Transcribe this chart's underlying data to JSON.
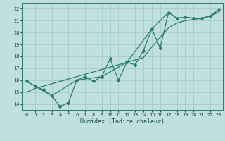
{
  "xlabel": "Humidex (Indice chaleur)",
  "xlim": [
    -0.5,
    23.5
  ],
  "ylim": [
    13.5,
    22.5
  ],
  "yticks": [
    14,
    15,
    16,
    17,
    18,
    19,
    20,
    21,
    22
  ],
  "xticks": [
    0,
    1,
    2,
    3,
    4,
    5,
    6,
    7,
    8,
    9,
    10,
    11,
    12,
    13,
    14,
    15,
    16,
    17,
    18,
    19,
    20,
    21,
    22,
    23
  ],
  "bg_color": "#c0e0e0",
  "line_color": "#2a7a6a",
  "grid_color_major": "#a0c8c8",
  "line1_x": [
    0,
    1,
    2,
    3,
    4,
    5,
    6,
    7,
    8,
    9,
    10,
    11,
    12,
    13,
    14,
    15,
    16,
    17,
    18,
    19,
    20,
    21,
    22,
    23
  ],
  "line1_y": [
    15.9,
    15.5,
    15.2,
    14.7,
    13.8,
    14.1,
    16.0,
    16.3,
    15.9,
    16.3,
    17.8,
    16.0,
    17.5,
    17.3,
    18.5,
    20.3,
    18.7,
    21.7,
    21.2,
    21.3,
    21.2,
    21.2,
    21.4,
    21.9
  ],
  "line2_x": [
    0,
    1,
    2,
    3,
    4,
    5,
    6,
    7,
    8,
    9,
    10,
    11,
    12,
    13,
    14,
    15,
    16,
    17,
    18,
    19,
    20,
    21,
    22,
    23
  ],
  "line2_y": [
    15.0,
    15.3,
    15.5,
    15.7,
    15.9,
    16.1,
    16.3,
    16.5,
    16.7,
    16.9,
    17.1,
    17.3,
    17.5,
    17.7,
    17.9,
    18.8,
    19.6,
    20.4,
    20.8,
    21.0,
    21.1,
    21.2,
    21.4,
    21.7
  ],
  "line3_x": [
    0,
    3,
    6,
    9,
    12,
    15,
    17,
    18,
    19,
    20,
    21,
    22,
    23
  ],
  "line3_y": [
    15.9,
    14.7,
    16.0,
    16.3,
    17.5,
    20.3,
    21.7,
    21.2,
    21.3,
    21.2,
    21.2,
    21.4,
    21.9
  ]
}
